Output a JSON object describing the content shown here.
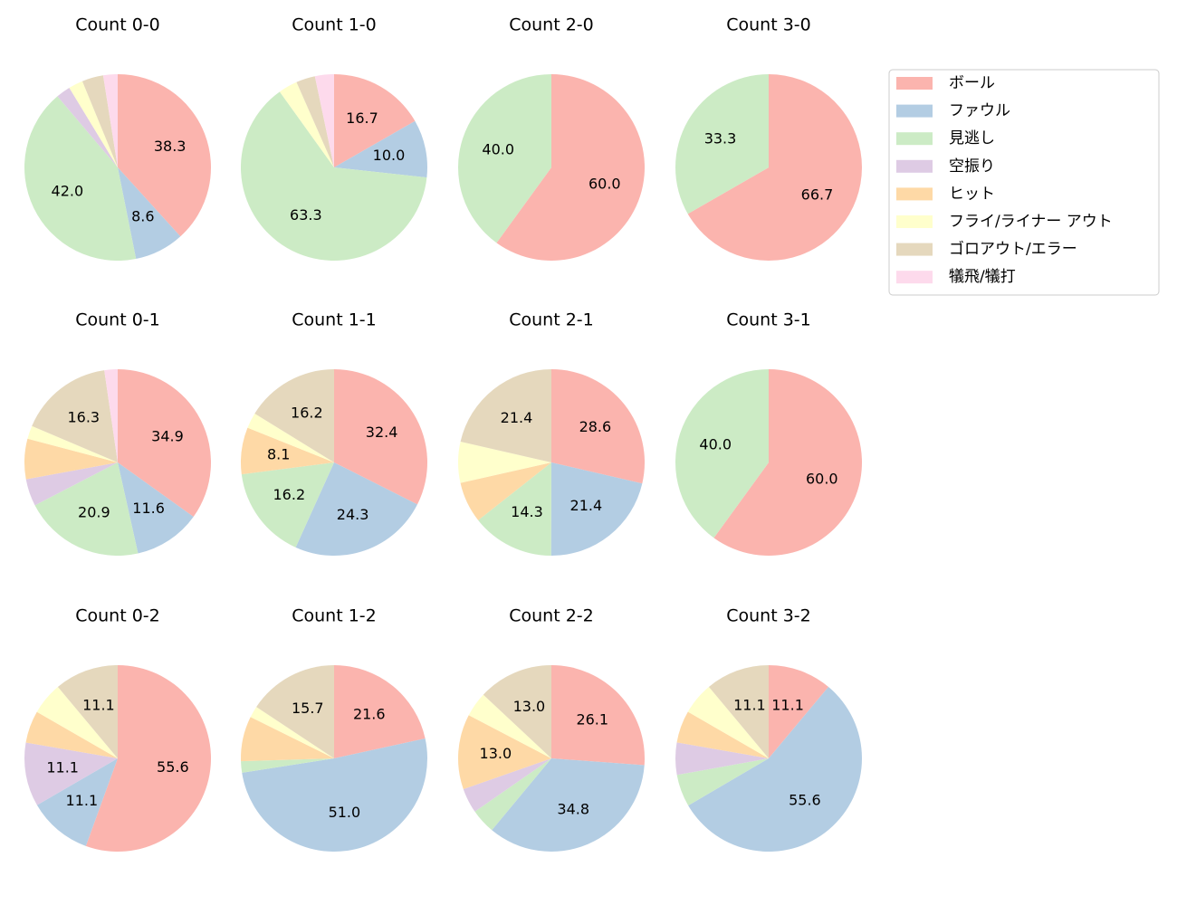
{
  "legend": {
    "labels": [
      "ボール",
      "ファウル",
      "見逃し",
      "空振り",
      "ヒット",
      "フライ/ライナー アウト",
      "ゴロアウト/エラー",
      "犠飛/犠打"
    ],
    "colors": [
      "#fbb4ae",
      "#b3cde3",
      "#ccebc5",
      "#decbe4",
      "#fed9a6",
      "#ffffcc",
      "#e5d8bd",
      "#fddaec"
    ]
  },
  "chart_data": [
    {
      "type": "pie",
      "title": "Count 0-0",
      "values": [
        38.3,
        8.6,
        42.0,
        2.5,
        0,
        2.5,
        3.7,
        2.5
      ],
      "value_labels": [
        "38.3",
        "8.6",
        "42.0",
        null,
        null,
        null,
        null,
        null
      ]
    },
    {
      "type": "pie",
      "title": "Count 1-0",
      "values": [
        16.7,
        10.0,
        63.3,
        0,
        0,
        3.3,
        3.3,
        3.3
      ],
      "value_labels": [
        "16.7",
        "10.0",
        "63.3",
        null,
        null,
        null,
        null,
        null
      ]
    },
    {
      "type": "pie",
      "title": "Count 2-0",
      "values": [
        60.0,
        0,
        40.0,
        0,
        0,
        0,
        0,
        0
      ],
      "value_labels": [
        "60.0",
        null,
        "40.0",
        null,
        null,
        null,
        null,
        null
      ]
    },
    {
      "type": "pie",
      "title": "Count 3-0",
      "values": [
        66.7,
        0,
        33.3,
        0,
        0,
        0,
        0,
        0
      ],
      "value_labels": [
        "66.7",
        null,
        "33.3",
        null,
        null,
        null,
        null,
        null
      ]
    },
    {
      "type": "pie",
      "title": "Count 0-1",
      "values": [
        34.9,
        11.6,
        20.9,
        4.7,
        7.0,
        2.3,
        16.3,
        2.3
      ],
      "value_labels": [
        "34.9",
        "11.6",
        "20.9",
        null,
        null,
        null,
        "16.3",
        null
      ]
    },
    {
      "type": "pie",
      "title": "Count 1-1",
      "values": [
        32.4,
        24.3,
        16.2,
        0,
        8.1,
        2.7,
        16.2,
        0
      ],
      "value_labels": [
        "32.4",
        "24.3",
        "16.2",
        null,
        "8.1",
        null,
        "16.2",
        null
      ]
    },
    {
      "type": "pie",
      "title": "Count 2-1",
      "values": [
        28.6,
        21.4,
        14.3,
        0,
        7.1,
        7.1,
        21.4,
        0
      ],
      "value_labels": [
        "28.6",
        "21.4",
        "14.3",
        null,
        null,
        null,
        "21.4",
        null
      ]
    },
    {
      "type": "pie",
      "title": "Count 3-1",
      "values": [
        60.0,
        0,
        40.0,
        0,
        0,
        0,
        0,
        0
      ],
      "value_labels": [
        "60.0",
        null,
        "40.0",
        null,
        null,
        null,
        null,
        null
      ]
    },
    {
      "type": "pie",
      "title": "Count 0-2",
      "values": [
        55.6,
        11.1,
        0,
        11.1,
        5.6,
        5.6,
        11.1,
        0
      ],
      "value_labels": [
        "55.6",
        "11.1",
        null,
        "11.1",
        null,
        null,
        "11.1",
        null
      ]
    },
    {
      "type": "pie",
      "title": "Count 1-2",
      "values": [
        21.6,
        51.0,
        2.0,
        0,
        7.8,
        2.0,
        15.7,
        0
      ],
      "value_labels": [
        "21.6",
        "51.0",
        null,
        null,
        null,
        null,
        "15.7",
        null
      ]
    },
    {
      "type": "pie",
      "title": "Count 2-2",
      "values": [
        26.1,
        34.8,
        4.3,
        4.3,
        13.0,
        4.3,
        13.0,
        0
      ],
      "value_labels": [
        "26.1",
        "34.8",
        null,
        null,
        "13.0",
        null,
        "13.0",
        null
      ]
    },
    {
      "type": "pie",
      "title": "Count 3-2",
      "values": [
        11.1,
        55.6,
        5.6,
        5.6,
        5.6,
        5.6,
        11.1,
        0
      ],
      "value_labels": [
        "11.1",
        "55.6",
        null,
        null,
        null,
        null,
        "11.1",
        null
      ]
    }
  ]
}
